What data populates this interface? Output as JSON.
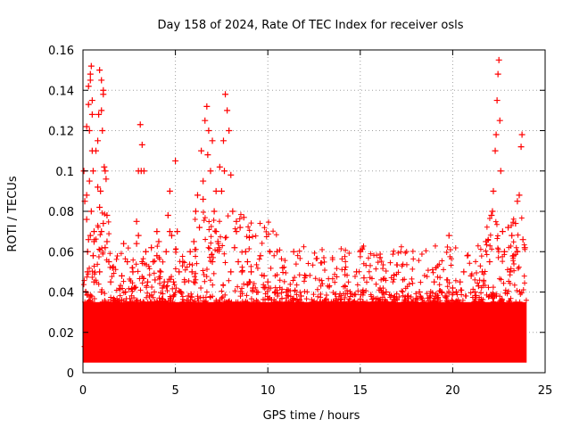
{
  "chart_data": {
    "type": "scatter",
    "title": "Day 158 of 2024, Rate Of TEC Index for receiver osls",
    "xlabel": "GPS time / hours",
    "ylabel": "ROTI / TECUs",
    "xlim": [
      0,
      25
    ],
    "ylim": [
      0,
      0.16
    ],
    "x_ticks": [
      0,
      5,
      10,
      15,
      20,
      25
    ],
    "y_ticks": [
      0,
      0.02,
      0.04,
      0.06,
      0.08,
      0.1,
      0.12,
      0.14,
      0.16
    ],
    "x_tick_labels": [
      "0",
      "5",
      "10",
      "15",
      "20",
      "25"
    ],
    "y_tick_labels": [
      "0",
      "0.02",
      "0.04",
      "0.06",
      "0.08",
      "0.1",
      "0.12",
      "0.14",
      "0.16"
    ],
    "grid": true,
    "marker": "+",
    "series_color": "#ff0000",
    "series": [
      {
        "name": "ROTI",
        "points": [
          [
            0.1,
            0.013
          ],
          [
            0.2,
            0.025
          ],
          [
            0.25,
            0.05
          ],
          [
            0.3,
            0.066
          ],
          [
            0.35,
            0.12
          ],
          [
            0.4,
            0.145
          ],
          [
            0.45,
            0.152
          ],
          [
            0.5,
            0.135
          ],
          [
            0.55,
            0.1
          ],
          [
            0.6,
            0.07
          ],
          [
            0.3,
            0.133
          ],
          [
            0.4,
            0.148
          ],
          [
            0.5,
            0.11
          ],
          [
            0.2,
            0.088
          ],
          [
            0.35,
            0.095
          ],
          [
            0.45,
            0.08
          ],
          [
            0.15,
            0.04
          ],
          [
            0.25,
            0.06
          ],
          [
            0.55,
            0.058
          ],
          [
            0.6,
            0.045
          ],
          [
            0.7,
            0.03
          ],
          [
            0.8,
            0.115
          ],
          [
            0.85,
            0.128
          ],
          [
            0.9,
            0.15
          ],
          [
            1.0,
            0.13
          ],
          [
            1.05,
            0.12
          ],
          [
            1.1,
            0.14
          ],
          [
            1.15,
            0.102
          ],
          [
            1.2,
            0.1
          ],
          [
            1.25,
            0.096
          ],
          [
            0.95,
            0.09
          ],
          [
            1.0,
            0.07
          ],
          [
            1.1,
            0.074
          ],
          [
            1.2,
            0.062
          ],
          [
            1.3,
            0.065
          ],
          [
            1.4,
            0.055
          ],
          [
            0.9,
            0.05
          ],
          [
            1.0,
            0.04
          ],
          [
            1.2,
            0.035
          ],
          [
            1.5,
            0.045
          ],
          [
            1.7,
            0.036
          ],
          [
            1.8,
            0.03
          ],
          [
            2.0,
            0.025
          ],
          [
            2.1,
            0.048
          ],
          [
            2.2,
            0.064
          ],
          [
            2.3,
            0.04
          ],
          [
            2.5,
            0.03
          ],
          [
            2.7,
            0.05
          ],
          [
            2.9,
            0.075
          ],
          [
            3.0,
            0.1
          ],
          [
            3.1,
            0.123
          ],
          [
            3.2,
            0.113
          ],
          [
            3.3,
            0.1
          ],
          [
            3.4,
            0.06
          ],
          [
            3.5,
            0.045
          ],
          [
            3.6,
            0.038
          ],
          [
            3.7,
            0.062
          ],
          [
            3.8,
            0.055
          ],
          [
            3.9,
            0.046
          ],
          [
            4.0,
            0.058
          ],
          [
            4.1,
            0.065
          ],
          [
            4.2,
            0.05
          ],
          [
            4.3,
            0.042
          ],
          [
            4.4,
            0.045
          ],
          [
            4.5,
            0.06
          ],
          [
            4.6,
            0.078
          ],
          [
            4.7,
            0.09
          ],
          [
            4.8,
            0.068
          ],
          [
            4.9,
            0.045
          ],
          [
            5.0,
            0.105
          ],
          [
            5.1,
            0.07
          ],
          [
            5.2,
            0.05
          ],
          [
            5.3,
            0.04
          ],
          [
            5.5,
            0.045
          ],
          [
            5.7,
            0.038
          ],
          [
            5.9,
            0.05
          ],
          [
            6.0,
            0.065
          ],
          [
            6.1,
            0.08
          ],
          [
            6.2,
            0.088
          ],
          [
            6.3,
            0.072
          ],
          [
            6.4,
            0.11
          ],
          [
            6.5,
            0.095
          ],
          [
            6.6,
            0.125
          ],
          [
            6.7,
            0.132
          ],
          [
            6.8,
            0.12
          ],
          [
            6.9,
            0.1
          ],
          [
            7.0,
            0.115
          ],
          [
            7.1,
            0.08
          ],
          [
            7.2,
            0.07
          ],
          [
            7.3,
            0.065
          ],
          [
            7.4,
            0.102
          ],
          [
            7.5,
            0.09
          ],
          [
            7.6,
            0.115
          ],
          [
            7.7,
            0.138
          ],
          [
            7.8,
            0.13
          ],
          [
            7.9,
            0.12
          ],
          [
            8.0,
            0.098
          ],
          [
            8.1,
            0.08
          ],
          [
            8.2,
            0.062
          ],
          [
            8.3,
            0.075
          ],
          [
            8.4,
            0.055
          ],
          [
            8.5,
            0.072
          ],
          [
            8.6,
            0.05
          ],
          [
            8.7,
            0.077
          ],
          [
            8.8,
            0.06
          ],
          [
            8.9,
            0.055
          ],
          [
            9.0,
            0.067
          ],
          [
            9.1,
            0.05
          ],
          [
            9.2,
            0.042
          ],
          [
            9.4,
            0.04
          ],
          [
            9.6,
            0.058
          ],
          [
            9.8,
            0.048
          ],
          [
            10.0,
            0.045
          ],
          [
            10.2,
            0.036
          ],
          [
            10.4,
            0.04
          ],
          [
            10.6,
            0.03
          ],
          [
            10.8,
            0.052
          ],
          [
            11.0,
            0.04
          ],
          [
            11.2,
            0.035
          ],
          [
            11.4,
            0.06
          ],
          [
            11.6,
            0.032
          ],
          [
            11.8,
            0.038
          ],
          [
            12.0,
            0.03
          ],
          [
            12.2,
            0.028
          ],
          [
            12.4,
            0.035
          ],
          [
            12.6,
            0.03
          ],
          [
            12.8,
            0.033
          ],
          [
            13.0,
            0.027
          ],
          [
            13.2,
            0.032
          ],
          [
            13.4,
            0.025
          ],
          [
            13.6,
            0.03
          ],
          [
            13.8,
            0.035
          ],
          [
            14.0,
            0.028
          ],
          [
            14.2,
            0.03
          ],
          [
            14.4,
            0.027
          ],
          [
            14.6,
            0.033
          ],
          [
            14.8,
            0.05
          ],
          [
            15.0,
            0.06
          ],
          [
            15.2,
            0.047
          ],
          [
            15.4,
            0.03
          ],
          [
            15.6,
            0.033
          ],
          [
            15.8,
            0.028
          ],
          [
            16.0,
            0.03
          ],
          [
            16.2,
            0.035
          ],
          [
            16.4,
            0.04
          ],
          [
            16.6,
            0.03
          ],
          [
            16.8,
            0.033
          ],
          [
            17.0,
            0.028
          ],
          [
            17.2,
            0.03
          ],
          [
            17.4,
            0.036
          ],
          [
            17.6,
            0.038
          ],
          [
            17.8,
            0.032
          ],
          [
            18.0,
            0.035
          ],
          [
            18.2,
            0.04
          ],
          [
            18.4,
            0.033
          ],
          [
            18.6,
            0.03
          ],
          [
            18.8,
            0.038
          ],
          [
            19.0,
            0.045
          ],
          [
            19.2,
            0.035
          ],
          [
            19.4,
            0.04
          ],
          [
            19.6,
            0.038
          ],
          [
            19.8,
            0.068
          ],
          [
            20.0,
            0.042
          ],
          [
            20.2,
            0.04
          ],
          [
            20.4,
            0.045
          ],
          [
            20.6,
            0.05
          ],
          [
            20.8,
            0.058
          ],
          [
            21.0,
            0.048
          ],
          [
            21.2,
            0.04
          ],
          [
            21.4,
            0.043
          ],
          [
            21.6,
            0.05
          ],
          [
            21.8,
            0.065
          ],
          [
            22.0,
            0.055
          ],
          [
            22.1,
            0.078
          ],
          [
            22.2,
            0.09
          ],
          [
            22.3,
            0.11
          ],
          [
            22.4,
            0.135
          ],
          [
            22.45,
            0.148
          ],
          [
            22.5,
            0.155
          ],
          [
            22.55,
            0.125
          ],
          [
            22.6,
            0.1
          ],
          [
            22.7,
            0.07
          ],
          [
            22.8,
            0.06
          ],
          [
            23.0,
            0.072
          ],
          [
            23.2,
            0.068
          ],
          [
            23.4,
            0.074
          ],
          [
            23.5,
            0.085
          ],
          [
            23.6,
            0.088
          ],
          [
            23.7,
            0.112
          ],
          [
            23.75,
            0.118
          ],
          [
            23.8,
            0.066
          ],
          [
            23.9,
            0.062
          ],
          [
            23.5,
            0.06
          ],
          [
            23.3,
            0.058
          ],
          [
            23.1,
            0.05
          ],
          [
            0.05,
            0.1
          ],
          [
            0.1,
            0.085
          ],
          [
            0.2,
            0.076
          ],
          [
            0.4,
            0.068
          ],
          [
            0.6,
            0.065
          ],
          [
            1.3,
            0.078
          ],
          [
            1.6,
            0.052
          ],
          [
            2.4,
            0.055
          ],
          [
            3.0,
            0.068
          ],
          [
            4.0,
            0.07
          ],
          [
            5.4,
            0.055
          ],
          [
            6.0,
            0.045
          ],
          [
            7.0,
            0.055
          ],
          [
            8.0,
            0.05
          ],
          [
            9.0,
            0.045
          ],
          [
            1.0,
            0.145
          ],
          [
            0.3,
            0.142
          ],
          [
            1.1,
            0.138
          ],
          [
            0.5,
            0.128
          ],
          [
            0.2,
            0.122
          ],
          [
            3.15,
            0.1
          ],
          [
            7.65,
            0.1
          ],
          [
            6.75,
            0.108
          ],
          [
            22.35,
            0.118
          ],
          [
            22.15,
            0.08
          ],
          [
            0.7,
            0.11
          ],
          [
            0.8,
            0.092
          ],
          [
            0.9,
            0.082
          ],
          [
            6.5,
            0.086
          ],
          [
            7.2,
            0.09
          ],
          [
            8.3,
            0.07
          ],
          [
            2.9,
            0.064
          ],
          [
            4.7,
            0.07
          ],
          [
            5.8,
            0.06
          ],
          [
            10.5,
            0.06
          ]
        ]
      }
    ],
    "dense_band": {
      "x_range": [
        0,
        24
      ],
      "y_range": [
        0.005,
        0.035
      ],
      "center": 0.018
    }
  }
}
